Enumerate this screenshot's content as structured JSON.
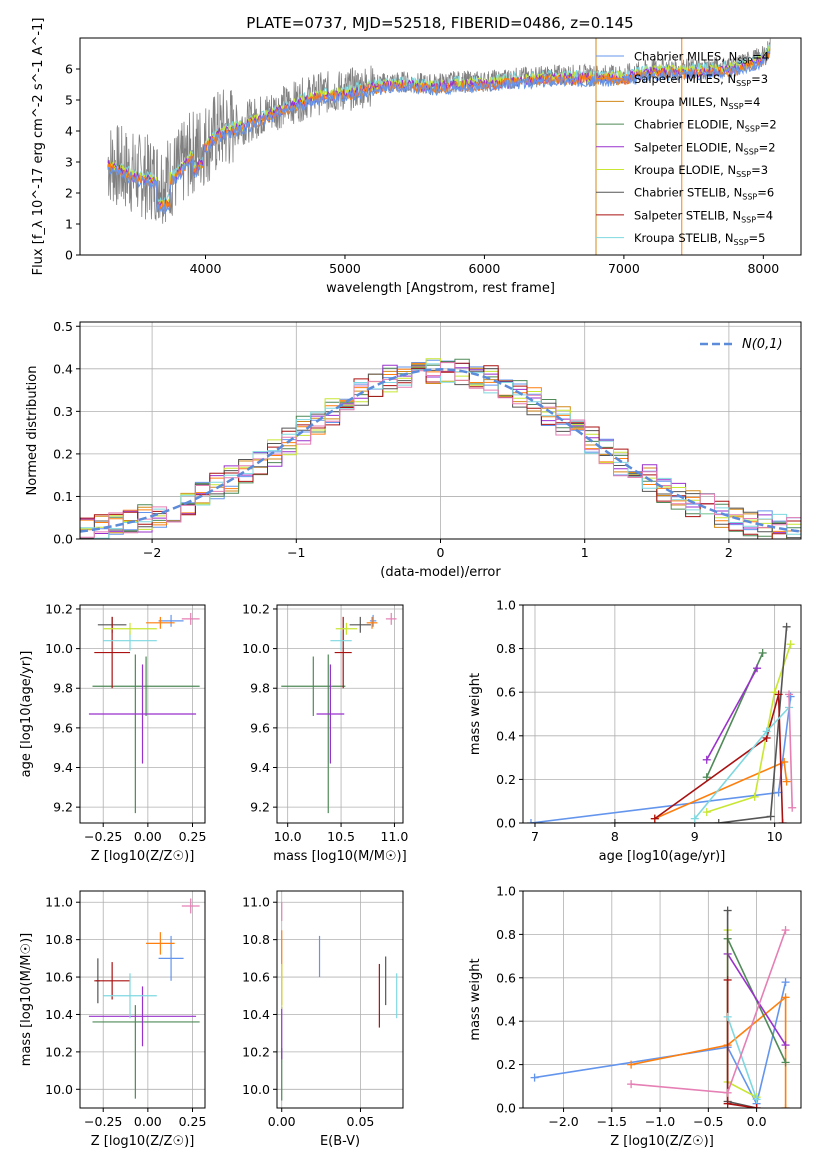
{
  "figure_title": "PLATE=0737, MJD=52518, FIBERID=0486, z=0.145",
  "colors": {
    "Chabrier MILES": "#6495ed",
    "Salpeter MILES": "#ff7f0e",
    "Kroupa MILES": "#d38a1a",
    "Chabrier ELODIE": "#4f8a58",
    "Salpeter ELODIE": "#9932cc",
    "Kroupa ELODIE": "#c8e632",
    "Chabrier STELIB": "#555555",
    "Salpeter STELIB": "#aa1111",
    "Kroupa STELIB": "#7fd8e0",
    "data": "#808080",
    "extra": "#e57fb4"
  },
  "chart_data": [
    {
      "id": "spectrum",
      "type": "line",
      "xlabel": "wavelength [Angstrom, rest frame]",
      "ylabel": "Flux [f_λ 10^-17 erg cm^-2 s^-1 A^-1]",
      "xlim": [
        3100,
        8270
      ],
      "ylim": [
        0,
        7
      ],
      "xticks": [
        4000,
        5000,
        6000,
        7000,
        8000
      ],
      "yticks": [
        0,
        1,
        2,
        3,
        4,
        5,
        6
      ],
      "legend_position": "top-right",
      "legend": [
        {
          "label": "Chabrier MILES, N",
          "sub": "SSP",
          "tail": "=4"
        },
        {
          "label": "Salpeter MILES, N",
          "sub": "SSP",
          "tail": "=3"
        },
        {
          "label": "Kroupa MILES, N",
          "sub": "SSP",
          "tail": "=4"
        },
        {
          "label": "Chabrier ELODIE, N",
          "sub": "SSP",
          "tail": "=2"
        },
        {
          "label": "Salpeter ELODIE, N",
          "sub": "SSP",
          "tail": "=2"
        },
        {
          "label": "Kroupa ELODIE, N",
          "sub": "SSP",
          "tail": "=3"
        },
        {
          "label": "Chabrier STELIB, N",
          "sub": "SSP",
          "tail": "=6"
        },
        {
          "label": "Salpeter STELIB, N",
          "sub": "SSP",
          "tail": "=4"
        },
        {
          "label": "Kroupa STELIB, N",
          "sub": "SSP",
          "tail": "=5"
        }
      ],
      "continuum": [
        [
          3300,
          3.0
        ],
        [
          3500,
          2.6
        ],
        [
          3700,
          2.4
        ],
        [
          3800,
          2.7
        ],
        [
          3900,
          3.3
        ],
        [
          4000,
          3.6
        ],
        [
          4100,
          4.0
        ],
        [
          4300,
          4.3
        ],
        [
          4500,
          4.7
        ],
        [
          4800,
          5.2
        ],
        [
          5000,
          5.3
        ],
        [
          5200,
          5.5
        ],
        [
          5400,
          5.6
        ],
        [
          5600,
          5.5
        ],
        [
          5800,
          5.6
        ],
        [
          6000,
          5.6
        ],
        [
          6200,
          5.7
        ],
        [
          6500,
          5.8
        ],
        [
          6800,
          5.8
        ],
        [
          7000,
          5.8
        ],
        [
          7200,
          6.0
        ],
        [
          7500,
          6.0
        ],
        [
          7800,
          6.1
        ],
        [
          8000,
          6.4
        ],
        [
          8050,
          6.7
        ]
      ]
    },
    {
      "id": "residuals",
      "type": "step-histogram",
      "xlabel": "(data-model)/error",
      "ylabel": "Normed distribution",
      "xlim": [
        -2.5,
        2.5
      ],
      "ylim": [
        0,
        0.51
      ],
      "xticks": [
        -2,
        -1,
        0,
        1,
        2
      ],
      "yticks": [
        0.0,
        0.1,
        0.2,
        0.3,
        0.4,
        0.5
      ],
      "legend_position": "top-right",
      "legend_label": "N(0,1)",
      "gaussian": {
        "mean": 0,
        "sigma": 1
      }
    },
    {
      "id": "age_vs_Z",
      "type": "errorbar",
      "xlabel": "Z [log10(Z/Z☉)]",
      "ylabel": "age [log10(age/yr)]",
      "xlim": [
        -0.38,
        0.32
      ],
      "ylim": [
        9.12,
        10.22
      ],
      "xticks": [
        -0.25,
        0.0,
        0.25
      ],
      "yticks": [
        9.2,
        9.4,
        9.6,
        9.8,
        10.0,
        10.2
      ],
      "points": [
        {
          "c": "Chabrier MILES",
          "x": 0.13,
          "y": 10.14,
          "xe": 0.07,
          "ye": 0.03
        },
        {
          "c": "Salpeter MILES",
          "x": 0.07,
          "y": 10.13,
          "xe": 0.08,
          "ye": 0.03
        },
        {
          "c": "extra",
          "x": 0.24,
          "y": 10.15,
          "xe": 0.05,
          "ye": 0.03
        },
        {
          "c": "Chabrier ELODIE",
          "x": -0.01,
          "y": 9.81,
          "xe": 0.3,
          "ye": 0.15
        },
        {
          "c": "Chabrier ELODIE",
          "x": -0.07,
          "y": 9.57,
          "xe": 0.0,
          "ye": 0.4
        },
        {
          "c": "Salpeter ELODIE",
          "x": -0.03,
          "y": 9.67,
          "xe": 0.3,
          "ye": 0.25
        },
        {
          "c": "Chabrier STELIB",
          "x": -0.2,
          "y": 10.12,
          "xe": 0.08,
          "ye": 0.04
        },
        {
          "c": "Salpeter STELIB",
          "x": -0.2,
          "y": 9.98,
          "xe": 0.1,
          "ye": 0.18
        },
        {
          "c": "Kroupa STELIB",
          "x": -0.1,
          "y": 10.04,
          "xe": 0.15,
          "ye": 0.05
        },
        {
          "c": "Kroupa ELODIE",
          "x": -0.1,
          "y": 10.1,
          "xe": 0.15,
          "ye": 0.03
        }
      ]
    },
    {
      "id": "age_vs_mass",
      "type": "errorbar",
      "xlabel": "mass [log10(M/M☉)]",
      "ylabel": "",
      "xlim": [
        9.9,
        11.08
      ],
      "ylim": [
        9.12,
        10.22
      ],
      "xticks": [
        10.0,
        10.5,
        11.0
      ],
      "yticks": [
        9.2,
        9.4,
        9.6,
        9.8,
        10.0,
        10.2
      ],
      "points": [
        {
          "c": "Chabrier MILES",
          "x": 10.8,
          "y": 10.14,
          "xe": 0.03,
          "ye": 0.03
        },
        {
          "c": "Salpeter MILES",
          "x": 10.79,
          "y": 10.13,
          "xe": 0.05,
          "ye": 0.03
        },
        {
          "c": "extra",
          "x": 10.97,
          "y": 10.15,
          "xe": 0.05,
          "ye": 0.03
        },
        {
          "c": "Chabrier ELODIE",
          "x": 10.24,
          "y": 9.81,
          "xe": 0.3,
          "ye": 0.15
        },
        {
          "c": "Chabrier ELODIE",
          "x": 10.38,
          "y": 9.57,
          "xe": 0.0,
          "ye": 0.4
        },
        {
          "c": "Salpeter ELODIE",
          "x": 10.4,
          "y": 9.67,
          "xe": 0.13,
          "ye": 0.25
        },
        {
          "c": "Chabrier STELIB",
          "x": 10.68,
          "y": 10.12,
          "xe": 0.1,
          "ye": 0.04
        },
        {
          "c": "Salpeter STELIB",
          "x": 10.52,
          "y": 9.98,
          "xe": 0.08,
          "ye": 0.18
        },
        {
          "c": "Kroupa STELIB",
          "x": 10.5,
          "y": 10.04,
          "xe": 0.1,
          "ye": 0.05
        },
        {
          "c": "Kroupa ELODIE",
          "x": 10.55,
          "y": 10.1,
          "xe": 0.1,
          "ye": 0.03
        }
      ]
    },
    {
      "id": "weight_vs_age",
      "type": "line",
      "xlabel": "age [log10(age/yr)]",
      "ylabel": "mass weight",
      "xlim": [
        6.85,
        10.33
      ],
      "ylim": [
        0,
        1
      ],
      "xticks": [
        7,
        8,
        9,
        10
      ],
      "yticks": [
        0.0,
        0.2,
        0.4,
        0.6,
        0.8,
        1.0
      ],
      "series": [
        {
          "c": "Chabrier MILES",
          "pts": [
            [
              6.95,
              0.0
            ],
            [
              10.05,
              0.14
            ],
            [
              10.2,
              0.58
            ]
          ]
        },
        {
          "c": "Salpeter MILES",
          "pts": [
            [
              8.5,
              0.02
            ],
            [
              10.12,
              0.28
            ],
            [
              10.15,
              0.19
            ]
          ]
        },
        {
          "c": "Chabrier ELODIE",
          "pts": [
            [
              9.15,
              0.21
            ],
            [
              9.85,
              0.78
            ]
          ]
        },
        {
          "c": "Salpeter ELODIE",
          "pts": [
            [
              9.15,
              0.29
            ],
            [
              9.78,
              0.71
            ]
          ]
        },
        {
          "c": "Kroupa ELODIE",
          "pts": [
            [
              9.15,
              0.05
            ],
            [
              9.75,
              0.12
            ],
            [
              10.0,
              0.6
            ],
            [
              10.2,
              0.82
            ]
          ]
        },
        {
          "c": "Chabrier STELIB",
          "pts": [
            [
              8.0,
              0.0
            ],
            [
              9.3,
              0.0
            ],
            [
              9.95,
              0.03
            ],
            [
              10.15,
              0.9
            ]
          ]
        },
        {
          "c": "Salpeter STELIB",
          "pts": [
            [
              8.5,
              0.02
            ],
            [
              9.9,
              0.39
            ],
            [
              10.05,
              0.59
            ],
            [
              10.1,
              0.0
            ]
          ]
        },
        {
          "c": "Kroupa STELIB",
          "pts": [
            [
              9.0,
              0.02
            ],
            [
              9.9,
              0.42
            ],
            [
              10.18,
              0.53
            ]
          ]
        },
        {
          "c": "extra",
          "pts": [
            [
              10.18,
              0.59
            ],
            [
              10.22,
              0.07
            ]
          ]
        }
      ]
    },
    {
      "id": "mass_vs_Z",
      "type": "errorbar",
      "xlabel": "Z [log10(Z/Z☉)]",
      "ylabel": "mass [log10(M/M☉)]",
      "xlim": [
        -0.38,
        0.32
      ],
      "ylim": [
        9.9,
        11.06
      ],
      "xticks": [
        -0.25,
        0.0,
        0.25
      ],
      "yticks": [
        10.0,
        10.2,
        10.4,
        10.6,
        10.8,
        11.0
      ],
      "points": [
        {
          "c": "Chabrier MILES",
          "x": 0.13,
          "y": 10.7,
          "xe": 0.07,
          "ye": 0.12
        },
        {
          "c": "Salpeter MILES",
          "x": 0.07,
          "y": 10.78,
          "xe": 0.08,
          "ye": 0.06
        },
        {
          "c": "extra",
          "x": 0.24,
          "y": 10.98,
          "xe": 0.05,
          "ye": 0.04
        },
        {
          "c": "Chabrier ELODIE",
          "x": -0.01,
          "y": 10.36,
          "xe": 0.3,
          "ye": 0.0
        },
        {
          "c": "Chabrier ELODIE",
          "x": -0.07,
          "y": 10.2,
          "xe": 0.0,
          "ye": 0.25
        },
        {
          "c": "Salpeter ELODIE",
          "x": -0.03,
          "y": 10.39,
          "xe": 0.3,
          "ye": 0.16
        },
        {
          "c": "Chabrier STELIB",
          "x": -0.28,
          "y": 10.58,
          "xe": 0.01,
          "ye": 0.12
        },
        {
          "c": "Salpeter STELIB",
          "x": -0.2,
          "y": 10.58,
          "xe": 0.1,
          "ye": 0.1
        },
        {
          "c": "Kroupa STELIB",
          "x": -0.1,
          "y": 10.5,
          "xe": 0.15,
          "ye": 0.12
        }
      ]
    },
    {
      "id": "mass_vs_ebv",
      "type": "errorbar",
      "xlabel": "E(B-V)",
      "ylabel": "",
      "xlim": [
        -0.003,
        0.077
      ],
      "ylim": [
        9.9,
        11.06
      ],
      "xticks": [
        0.0,
        0.05
      ],
      "yticks": [
        10.0,
        10.2,
        10.4,
        10.6,
        10.8,
        11.0
      ],
      "points": [
        {
          "c": "Chabrier MILES",
          "x": 0.024,
          "y": 10.71,
          "xe": 0.0,
          "ye": 0.11
        },
        {
          "c": "Salpeter MILES",
          "x": 0.0,
          "y": 10.65,
          "xe": 0.0,
          "ye": 0.2
        },
        {
          "c": "extra",
          "x": 0.0,
          "y": 10.95,
          "xe": 0.0,
          "ye": 0.05
        },
        {
          "c": "Chabrier ELODIE",
          "x": 0.0,
          "y": 10.08,
          "xe": 0.0,
          "ye": 0.14
        },
        {
          "c": "Salpeter ELODIE",
          "x": 0.0,
          "y": 10.3,
          "xe": 0.0,
          "ye": 0.14
        },
        {
          "c": "Kroupa ELODIE",
          "x": 0.0,
          "y": 10.55,
          "xe": 0.0,
          "ye": 0.12
        },
        {
          "c": "Chabrier STELIB",
          "x": 0.066,
          "y": 10.58,
          "xe": 0.0,
          "ye": 0.13
        },
        {
          "c": "Salpeter STELIB",
          "x": 0.062,
          "y": 10.5,
          "xe": 0.0,
          "ye": 0.17
        },
        {
          "c": "Kroupa STELIB",
          "x": 0.073,
          "y": 10.5,
          "xe": 0.0,
          "ye": 0.12
        }
      ]
    },
    {
      "id": "weight_vs_Z",
      "type": "line",
      "xlabel": "Z [log10(Z/Z☉)]",
      "ylabel": "mass weight",
      "xlim": [
        -2.42,
        0.46
      ],
      "ylim": [
        0,
        1
      ],
      "xticks": [
        -2.0,
        -1.5,
        -1.0,
        -0.5,
        0.0
      ],
      "yticks": [
        0.0,
        0.2,
        0.4,
        0.6,
        0.8,
        1.0
      ],
      "series": [
        {
          "c": "Chabrier MILES",
          "pts": [
            [
              -2.3,
              0.14
            ],
            [
              -0.3,
              0.28
            ],
            [
              0.0,
              0.02
            ],
            [
              0.3,
              0.58
            ]
          ]
        },
        {
          "c": "Salpeter MILES",
          "pts": [
            [
              -1.3,
              0.2
            ],
            [
              -0.3,
              0.29
            ],
            [
              0.3,
              0.51
            ],
            [
              0.3,
              0.0
            ]
          ]
        },
        {
          "c": "Chabrier ELODIE",
          "pts": [
            [
              -0.3,
              0.78
            ],
            [
              0.3,
              0.21
            ]
          ]
        },
        {
          "c": "Salpeter ELODIE",
          "pts": [
            [
              -0.3,
              0.71
            ],
            [
              0.3,
              0.29
            ]
          ]
        },
        {
          "c": "Kroupa ELODIE",
          "pts": [
            [
              -0.3,
              0.82
            ],
            [
              -0.3,
              0.12
            ],
            [
              0.0,
              0.05
            ]
          ]
        },
        {
          "c": "Chabrier STELIB",
          "pts": [
            [
              -0.3,
              0.91
            ],
            [
              -0.3,
              0.03
            ],
            [
              0.0,
              0.0
            ]
          ]
        },
        {
          "c": "Salpeter STELIB",
          "pts": [
            [
              -0.3,
              0.59
            ],
            [
              -0.3,
              0.02
            ],
            [
              0.0,
              0.0
            ]
          ]
        },
        {
          "c": "Kroupa STELIB",
          "pts": [
            [
              -0.3,
              0.42
            ],
            [
              0.0,
              0.04
            ]
          ]
        },
        {
          "c": "extra",
          "pts": [
            [
              -1.3,
              0.11
            ],
            [
              -0.3,
              0.07
            ],
            [
              0.3,
              0.82
            ]
          ]
        }
      ]
    }
  ]
}
